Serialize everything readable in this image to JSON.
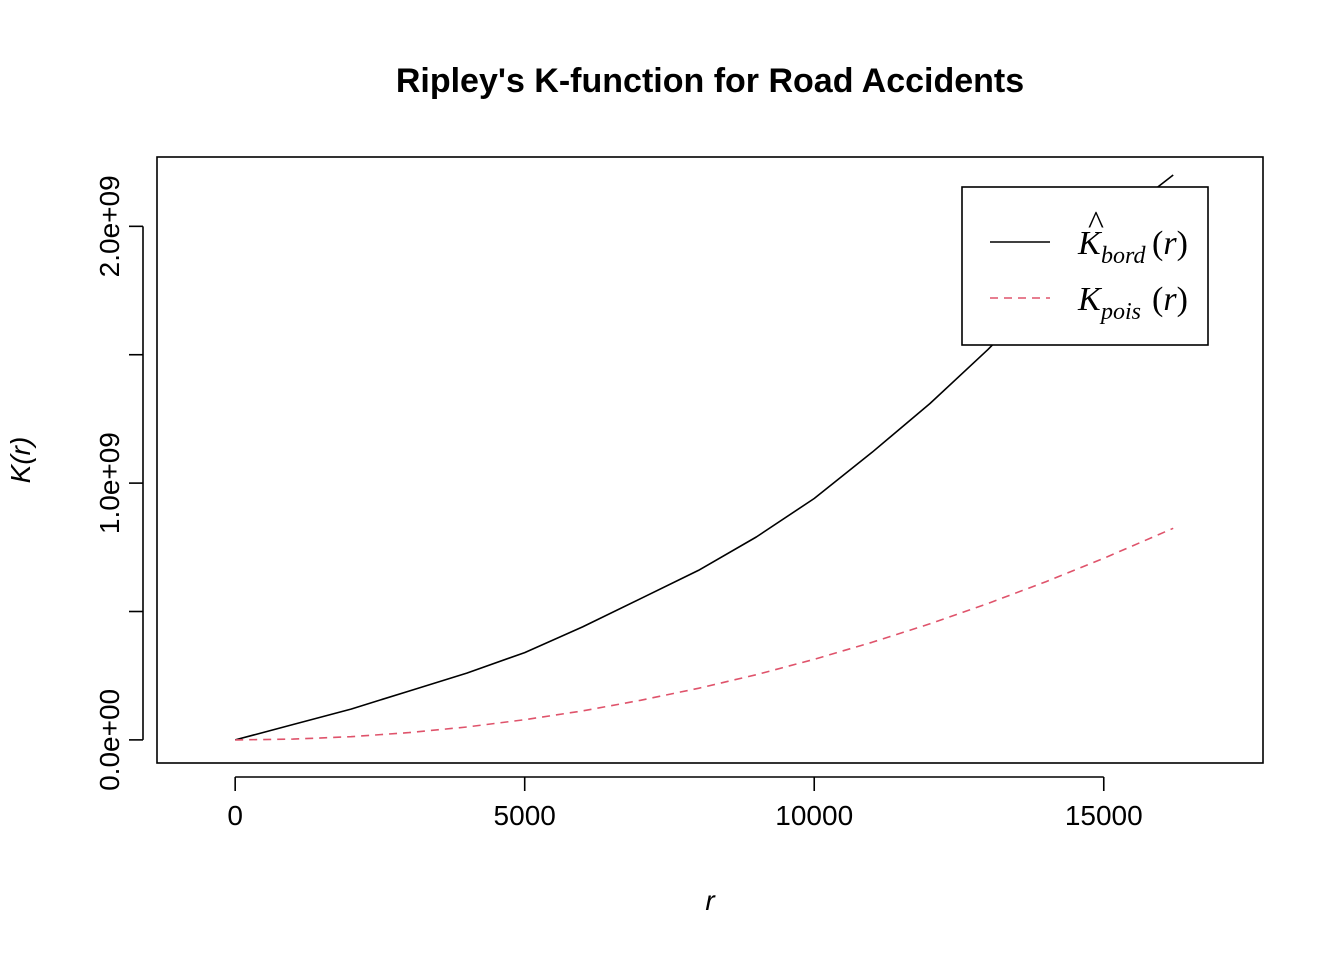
{
  "chart_data": {
    "type": "line",
    "title": "Ripley's K-function for Road Accidents",
    "xlabel": "r",
    "ylabel": "K(r)",
    "xlim": [
      -1350,
      17750
    ],
    "ylim": [
      -90000000,
      2270000000
    ],
    "x_ticks": [
      0,
      5000,
      10000,
      15000
    ],
    "x_tick_labels": [
      "0",
      "5000",
      "10000",
      "15000"
    ],
    "y_ticks": [
      0,
      500000000,
      1000000000,
      1500000000,
      2000000000
    ],
    "y_tick_labels": [
      "0.0e+00",
      "",
      "1.0e+09",
      "",
      "2.0e+09"
    ],
    "legend_position": "top-right",
    "grid": false,
    "series": [
      {
        "key": "bord",
        "legend_main": "K",
        "legend_hat": "^",
        "legend_sub": "bord",
        "legend_arg": "(r)",
        "color": "#000000",
        "dash": "solid",
        "x": [
          0,
          1000,
          2000,
          3000,
          4000,
          5000,
          6000,
          7000,
          8000,
          9000,
          10000,
          11000,
          12000,
          13000,
          14000,
          15000,
          16200
        ],
        "y": [
          0,
          60000000,
          120000000,
          190000000,
          260000000,
          340000000,
          440000000,
          550000000,
          660000000,
          790000000,
          940000000,
          1120000000,
          1310000000,
          1520000000,
          1750000000,
          1990000000,
          2200000000
        ]
      },
      {
        "key": "pois",
        "legend_main": "K",
        "legend_hat": "",
        "legend_sub": "pois",
        "legend_arg": "(r)",
        "color": "#DF536B",
        "dash": "dashed",
        "x": [
          0,
          1000,
          2000,
          3000,
          4000,
          5000,
          6000,
          7000,
          8000,
          9000,
          10000,
          11000,
          12000,
          13000,
          14000,
          15000,
          16200
        ],
        "y": [
          0,
          3100000,
          12600000,
          28300000,
          50300000,
          78500000,
          113000000,
          154000000,
          201000000,
          254000000,
          314000000,
          380000000,
          452000000,
          531000000,
          616000000,
          707000000,
          824000000
        ]
      }
    ]
  }
}
